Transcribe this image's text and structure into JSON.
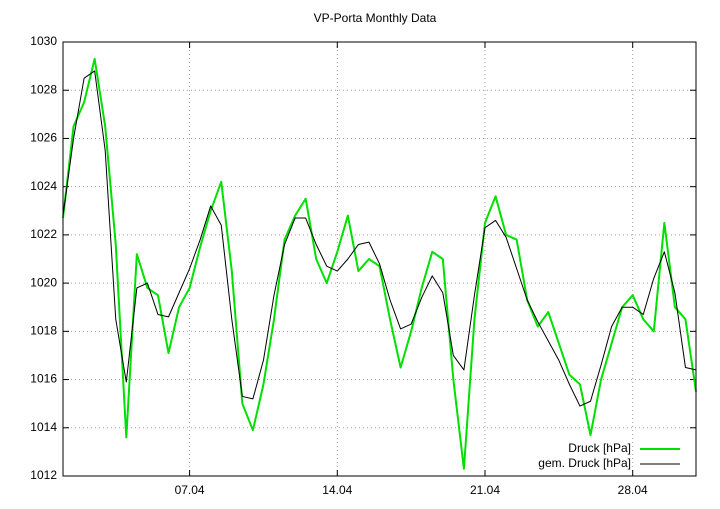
{
  "chart_data": {
    "type": "line",
    "title": "VP-Porta Monthly Data",
    "x": [
      1,
      1.5,
      2,
      2.5,
      3,
      3.5,
      4,
      4.5,
      5,
      5.5,
      6,
      6.5,
      7,
      7.5,
      8,
      8.5,
      9,
      9.5,
      10,
      10.5,
      11,
      11.5,
      12,
      12.5,
      13,
      13.5,
      14,
      14.5,
      15,
      15.5,
      16,
      16.5,
      17,
      17.5,
      18,
      18.5,
      19,
      19.5,
      20,
      20.5,
      21,
      21.5,
      22,
      22.5,
      23,
      23.5,
      24,
      24.5,
      25,
      25.5,
      26,
      26.5,
      27,
      27.5,
      28,
      28.5,
      29,
      29.5,
      30,
      30.5,
      31
    ],
    "series": [
      {
        "name": "Druck [hPa]",
        "color": "#00e000",
        "values": [
          1022.7,
          1026.5,
          1027.5,
          1029.3,
          1026.5,
          1021.6,
          1013.6,
          1021.2,
          1019.8,
          1019.5,
          1017.1,
          1019.0,
          1019.8,
          1021.5,
          1023.0,
          1024.2,
          1020.5,
          1015.0,
          1013.9,
          1015.8,
          1018.5,
          1021.8,
          1022.8,
          1023.5,
          1021.0,
          1020.0,
          1021.3,
          1022.8,
          1020.5,
          1021.0,
          1020.7,
          1018.5,
          1016.5,
          1018.0,
          1019.8,
          1021.3,
          1021.0,
          1016.0,
          1012.3,
          1018.5,
          1022.5,
          1023.6,
          1022.0,
          1021.8,
          1019.3,
          1018.2,
          1018.8,
          1017.5,
          1016.2,
          1015.8,
          1013.7,
          1016.0,
          1017.5,
          1019.0,
          1019.5,
          1018.5,
          1018.0,
          1022.5,
          1019.0,
          1018.5,
          1015.5
        ]
      },
      {
        "name": "gem. Druck [hPa]",
        "color": "#000000",
        "values": [
          1022.8,
          1026.0,
          1028.5,
          1028.8,
          1025.5,
          1018.5,
          1015.9,
          1019.8,
          1020.0,
          1018.7,
          1018.6,
          1019.6,
          1020.6,
          1021.8,
          1023.2,
          1022.4,
          1018.5,
          1015.3,
          1015.2,
          1016.8,
          1019.5,
          1021.6,
          1022.7,
          1022.7,
          1021.6,
          1020.7,
          1020.5,
          1021.0,
          1021.6,
          1021.7,
          1020.8,
          1019.3,
          1018.1,
          1018.3,
          1019.4,
          1020.3,
          1019.6,
          1017.0,
          1016.4,
          1019.5,
          1022.3,
          1022.6,
          1021.9,
          1020.6,
          1019.3,
          1018.4,
          1017.6,
          1016.8,
          1015.8,
          1014.9,
          1015.1,
          1016.6,
          1018.2,
          1019.0,
          1019.0,
          1018.7,
          1020.2,
          1021.3,
          1019.6,
          1016.5,
          1016.4
        ]
      }
    ],
    "xlim": [
      1,
      31
    ],
    "xticks": [
      {
        "value": 7,
        "label": "07.04"
      },
      {
        "value": 14,
        "label": "14.04"
      },
      {
        "value": 21,
        "label": "21.04"
      },
      {
        "value": 28,
        "label": "28.04"
      }
    ],
    "ylim": [
      1012,
      1030
    ],
    "yticks": [
      1012,
      1014,
      1016,
      1018,
      1020,
      1022,
      1024,
      1026,
      1028,
      1030
    ],
    "grid": true,
    "legend": "bottom-right"
  }
}
